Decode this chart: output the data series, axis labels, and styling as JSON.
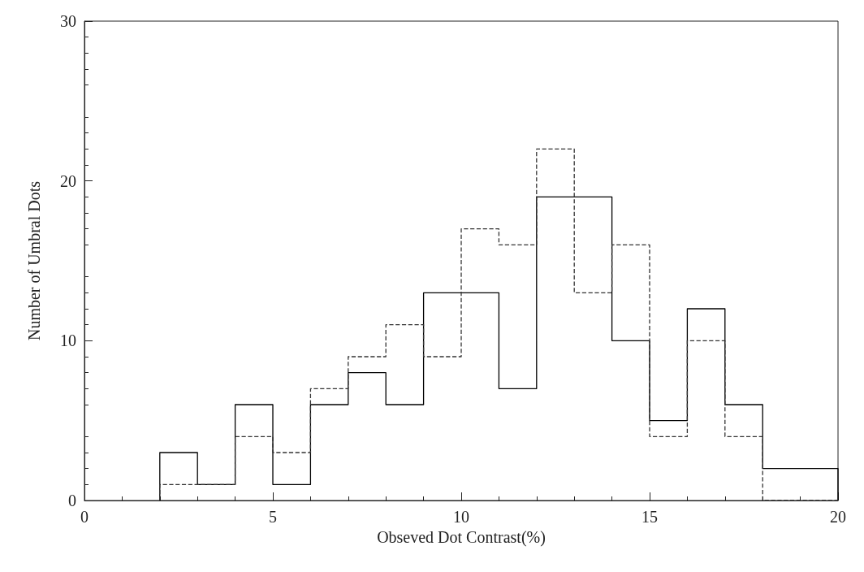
{
  "chart_data": {
    "type": "histogram",
    "xlabel": "Obseved Dot Contrast(%)",
    "ylabel": "Number of Umbral Dots",
    "bins": [
      2,
      3,
      4,
      5,
      6,
      7,
      8,
      9,
      10,
      11,
      12,
      13,
      14,
      15,
      16,
      17,
      18,
      19,
      20
    ],
    "series": [
      {
        "color": "#000000",
        "line_style": "solid",
        "values": [
          3,
          1,
          6,
          1,
          6,
          8,
          6,
          13,
          13,
          7,
          19,
          19,
          10,
          5,
          12,
          6,
          2,
          2
        ]
      },
      {
        "color": "#333333",
        "line_style": "dashed",
        "values": [
          1,
          1,
          4,
          3,
          7,
          9,
          11,
          9,
          17,
          16,
          22,
          13,
          16,
          4,
          10,
          4,
          0,
          0
        ]
      }
    ],
    "xlim": [
      0,
      20
    ],
    "xticks": [
      0,
      5,
      10,
      15,
      20
    ],
    "ylim": [
      0,
      30
    ],
    "yticks": [
      0,
      10,
      20,
      30
    ],
    "grid": false
  }
}
